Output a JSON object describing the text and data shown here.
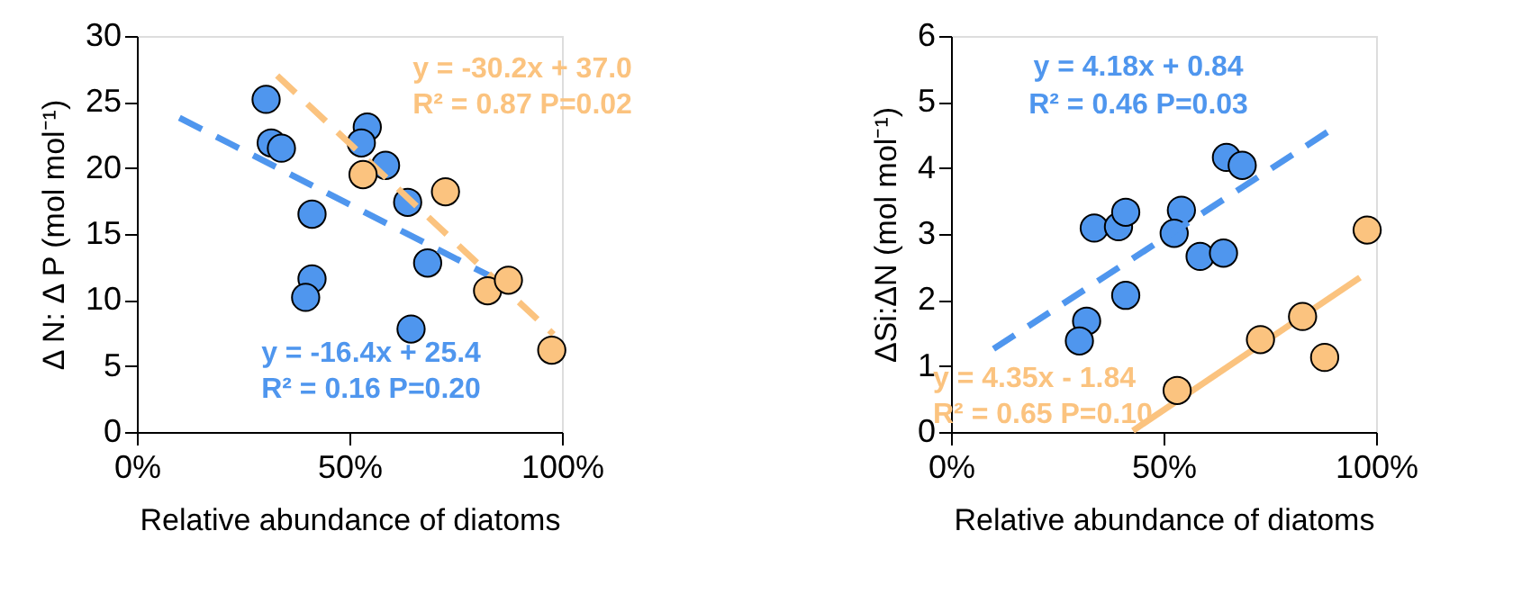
{
  "chart_data": [
    {
      "type": "scatter",
      "xlabel": "Relative abundance of diatoms",
      "ylabel": "Δ N: Δ P (mol mol⁻¹)",
      "xlim": [
        0,
        1
      ],
      "xticks": [
        {
          "value": 0,
          "label": "0%"
        },
        {
          "value": 0.5,
          "label": "50%"
        },
        {
          "value": 1,
          "label": "100%"
        }
      ],
      "ylim": [
        0,
        30
      ],
      "yticks": [
        0,
        5,
        10,
        15,
        20,
        25,
        30
      ],
      "grid": false,
      "series": [
        {
          "marker": "circle",
          "color": "#4f96ee",
          "x": [
            0.304,
            0.316,
            0.34,
            0.542,
            0.528,
            0.585,
            0.637,
            0.412,
            0.412,
            0.397,
            0.684,
            0.645
          ],
          "values": [
            25.2,
            21.9,
            21.5,
            23.1,
            21.9,
            20.2,
            17.4,
            16.5,
            11.6,
            10.2,
            12.8,
            7.8
          ]
        },
        {
          "marker": "circle",
          "color": "#fbc37f",
          "x": [
            0.532,
            0.726,
            0.825,
            0.874,
            0.976
          ],
          "values": [
            19.5,
            18.2,
            10.7,
            11.5,
            6.2
          ]
        },
        {
          "type": "line",
          "line_style": "dashed",
          "color": "#4f96ee",
          "x": [
            0.1,
            0.85
          ],
          "values": [
            23.8,
            11.5
          ]
        },
        {
          "type": "line",
          "line_style": "dashed",
          "color": "#fbc37f",
          "x": [
            0.33,
            0.98
          ],
          "values": [
            27.0,
            7.4
          ]
        }
      ],
      "annotations": [
        "y = -30.2x + 37.0",
        "R² = 0.87 P=0.02",
        "y = -16.4x + 25.4",
        "R² = 0.16 P=0.20"
      ]
    },
    {
      "type": "scatter",
      "xlabel": "Relative abundance of diatoms",
      "ylabel": "ΔSi:ΔN (mol mol⁻¹)",
      "xlim": [
        0,
        1
      ],
      "xticks": [
        {
          "value": 0,
          "label": "0%"
        },
        {
          "value": 0.5,
          "label": "50%"
        },
        {
          "value": 1,
          "label": "100%"
        }
      ],
      "ylim": [
        0,
        6
      ],
      "yticks": [
        0,
        1,
        2,
        3,
        4,
        5,
        6
      ],
      "grid": false,
      "series": [
        {
          "marker": "circle",
          "color": "#4f96ee",
          "x": [
            0.648,
            0.685,
            0.337,
            0.394,
            0.411,
            0.542,
            0.525,
            0.586,
            0.641,
            0.411,
            0.319,
            0.302
          ],
          "values": [
            4.16,
            4.04,
            3.09,
            3.11,
            3.33,
            3.36,
            3.01,
            2.66,
            2.71,
            2.07,
            1.68,
            1.38
          ]
        },
        {
          "marker": "circle",
          "color": "#fbc37f",
          "x": [
            0.979,
            0.827,
            0.728,
            0.879,
            0.532
          ],
          "values": [
            3.06,
            1.75,
            1.4,
            1.13,
            0.63
          ]
        },
        {
          "type": "line",
          "line_style": "dashed",
          "color": "#4f96ee",
          "x": [
            0.1,
            0.894
          ],
          "values": [
            1.26,
            4.58
          ]
        },
        {
          "type": "line",
          "line_style": "solid",
          "color": "#fbc37f",
          "x": [
            0.428,
            0.962
          ],
          "values": [
            0.02,
            2.34
          ]
        }
      ],
      "annotations": [
        "y = 4.18x + 0.84",
        "R² = 0.46 P=0.03",
        "y = 4.35x - 1.84",
        "R² = 0.65 P=0.10"
      ]
    }
  ]
}
